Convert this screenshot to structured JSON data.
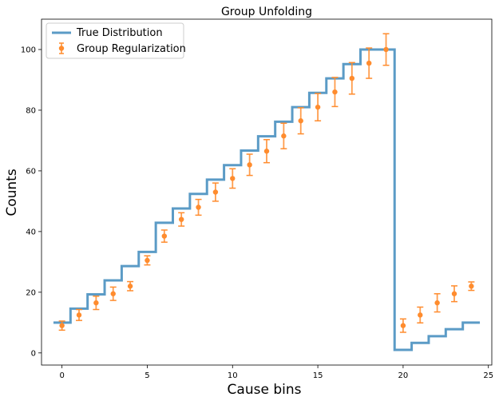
{
  "chart_data": {
    "type": "line",
    "title": "Group Unfolding",
    "xlabel": "Cause bins",
    "ylabel": "Counts",
    "xlim": [
      -1.2,
      25.2
    ],
    "ylim": [
      -4,
      110
    ],
    "xticks": [
      0,
      5,
      10,
      15,
      20,
      25
    ],
    "yticks": [
      0,
      20,
      40,
      60,
      80,
      100
    ],
    "grid": false,
    "legend_position": "top-left",
    "series": [
      {
        "name": "True Distribution",
        "style": "step",
        "color": "#5b9bc6",
        "x": [
          0,
          1,
          2,
          3,
          4,
          5,
          6,
          7,
          8,
          9,
          10,
          11,
          12,
          13,
          14,
          15,
          16,
          17,
          18,
          19,
          20,
          21,
          22,
          23,
          24
        ],
        "y": [
          10,
          14.6,
          19.3,
          23.9,
          28.6,
          33.3,
          42.9,
          47.6,
          52.4,
          57.1,
          61.9,
          66.7,
          71.4,
          76.2,
          81,
          85.7,
          90.5,
          95.2,
          100,
          100,
          1,
          3.3,
          5.5,
          7.8,
          10
        ]
      },
      {
        "name": "Group Regularization",
        "style": "errorbar",
        "color": "#ff8c2e",
        "x": [
          0,
          1,
          2,
          3,
          4,
          5,
          6,
          7,
          8,
          9,
          10,
          11,
          12,
          13,
          14,
          15,
          16,
          17,
          18,
          19,
          20,
          21,
          22,
          23,
          24
        ],
        "y": [
          9,
          12.5,
          16.5,
          19.5,
          22,
          30.5,
          38.5,
          44,
          48,
          53,
          57.5,
          62,
          66.5,
          71.5,
          76.5,
          81,
          86,
          90.5,
          95.5,
          100,
          9,
          12.5,
          16.5,
          19.5,
          22
        ],
        "yerr": [
          1.5,
          1.8,
          2.2,
          2.2,
          1.5,
          1.5,
          2,
          2.2,
          2.6,
          3,
          3.2,
          3.5,
          3.8,
          4.2,
          4.3,
          4.5,
          4.8,
          5.2,
          5,
          5.2,
          2.2,
          2.6,
          3,
          2.6,
          1.4
        ]
      }
    ]
  }
}
